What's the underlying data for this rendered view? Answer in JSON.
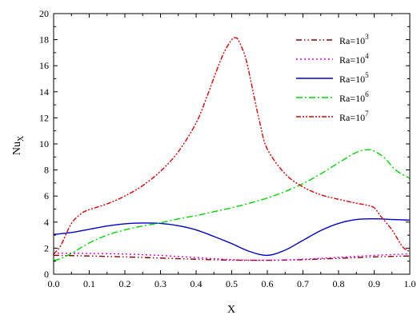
{
  "chart_data": {
    "type": "line",
    "xlabel": "X",
    "ylabel": {
      "base": "Nu",
      "sub": "X"
    },
    "xlim": [
      0.0,
      1.0
    ],
    "ylim": [
      0,
      20
    ],
    "xticks": [
      "0.0",
      "0.1",
      "0.2",
      "0.3",
      "0.4",
      "0.5",
      "0.6",
      "0.7",
      "0.8",
      "0.9",
      "1.0"
    ],
    "yticks": [
      "0",
      "2",
      "4",
      "6",
      "8",
      "10",
      "12",
      "14",
      "16",
      "18",
      "20"
    ],
    "grid": false,
    "legend_position": "top-right",
    "series": [
      {
        "name": "Ra=10",
        "exp": "3",
        "color": "#8B0000",
        "dash": "7,3,1.5,3,1.5,3",
        "x": [
          0.0,
          0.1,
          0.2,
          0.3,
          0.4,
          0.5,
          0.6,
          0.7,
          0.8,
          0.9,
          1.0
        ],
        "y": [
          1.45,
          1.4,
          1.33,
          1.24,
          1.15,
          1.08,
          1.07,
          1.12,
          1.22,
          1.33,
          1.4
        ]
      },
      {
        "name": "Ra=10",
        "exp": "4",
        "color": "#E000E0",
        "dash": "2,3",
        "x": [
          0.0,
          0.1,
          0.2,
          0.3,
          0.4,
          0.5,
          0.6,
          0.7,
          0.8,
          0.9,
          1.0
        ],
        "y": [
          1.62,
          1.6,
          1.55,
          1.44,
          1.28,
          1.12,
          1.07,
          1.15,
          1.3,
          1.45,
          1.56
        ]
      },
      {
        "name": "Ra=10",
        "exp": "5",
        "color": "#0000C8",
        "dash": "",
        "x": [
          0.0,
          0.05,
          0.1,
          0.15,
          0.2,
          0.25,
          0.3,
          0.35,
          0.4,
          0.45,
          0.5,
          0.55,
          0.6,
          0.65,
          0.7,
          0.75,
          0.8,
          0.85,
          0.9,
          0.95,
          1.0
        ],
        "y": [
          3.05,
          3.2,
          3.45,
          3.7,
          3.87,
          3.93,
          3.9,
          3.72,
          3.4,
          2.9,
          2.35,
          1.75,
          1.45,
          1.85,
          2.6,
          3.35,
          3.9,
          4.2,
          4.25,
          4.2,
          4.15
        ]
      },
      {
        "name": "Ra=10",
        "exp": "6",
        "color": "#00D800",
        "dash": "8,3,2,3",
        "x": [
          0.0,
          0.02,
          0.05,
          0.1,
          0.15,
          0.2,
          0.25,
          0.3,
          0.35,
          0.4,
          0.45,
          0.5,
          0.55,
          0.6,
          0.65,
          0.7,
          0.75,
          0.8,
          0.85,
          0.88,
          0.9,
          0.93,
          0.96,
          1.0
        ],
        "y": [
          1.05,
          1.2,
          1.6,
          2.4,
          3.0,
          3.4,
          3.7,
          3.95,
          4.25,
          4.5,
          4.8,
          5.1,
          5.45,
          5.85,
          6.35,
          6.95,
          7.7,
          8.55,
          9.35,
          9.55,
          9.45,
          8.9,
          8.0,
          7.35
        ]
      },
      {
        "name": "Ra=10",
        "exp": "7",
        "color": "#E00000",
        "dash": "6,2,2,2,2,2",
        "x": [
          0.0,
          0.02,
          0.05,
          0.08,
          0.1,
          0.15,
          0.2,
          0.25,
          0.3,
          0.35,
          0.4,
          0.43,
          0.46,
          0.48,
          0.5,
          0.51,
          0.52,
          0.54,
          0.56,
          0.58,
          0.6,
          0.65,
          0.7,
          0.75,
          0.8,
          0.85,
          0.88,
          0.9,
          0.92,
          0.95,
          0.98,
          1.0
        ],
        "y": [
          1.55,
          2.2,
          3.9,
          4.7,
          4.95,
          5.4,
          6.0,
          6.8,
          7.9,
          9.4,
          11.6,
          13.6,
          15.8,
          17.1,
          18.0,
          18.15,
          17.9,
          16.5,
          14.0,
          11.5,
          9.6,
          7.7,
          6.7,
          6.1,
          5.75,
          5.45,
          5.3,
          5.1,
          4.4,
          3.4,
          2.1,
          1.75
        ]
      }
    ]
  }
}
